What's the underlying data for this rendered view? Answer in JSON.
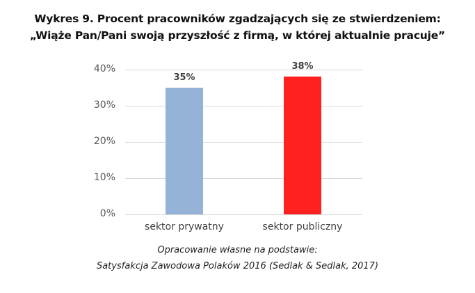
{
  "title_line1": "Wykres 9. Procent pracowników zgadzających się ze stwierdzeniem:",
  "title_line2": "„Wiąże Pan/Pani swoją przyszłość z firmą, w której aktualnie pracuje”",
  "yticks": [
    "0%",
    "10%",
    "20%",
    "30%",
    "40%"
  ],
  "bars": [
    {
      "category": "sektor prywatny",
      "value": 35,
      "label": "35%",
      "color": "#95b3d7"
    },
    {
      "category": "sektor publiczny",
      "value": 38,
      "label": "38%",
      "color": "#ff2020"
    }
  ],
  "source_line1": "Opracowanie własne na podstawie:",
  "source_line2": "Satysfakcja Zawodowa Polaków 2016 (Sedlak & Sedlak, 2017)",
  "chart_data": {
    "type": "bar",
    "title": "Wykres 9. Procent pracowników zgadzających się ze stwierdzeniem: „Wiąże Pan/Pani swoją przyszłość z firmą, w której aktualnie pracuje”",
    "categories": [
      "sektor prywatny",
      "sektor publiczny"
    ],
    "values": [
      35,
      38
    ],
    "data_labels": [
      "35%",
      "38%"
    ],
    "colors": [
      "#95b3d7",
      "#ff2020"
    ],
    "xlabel": "",
    "ylabel": "",
    "ylim": [
      0,
      40
    ],
    "yticks": [
      "0%",
      "10%",
      "20%",
      "30%",
      "40%"
    ],
    "grid": true,
    "legend": "none",
    "caption": "Opracowanie własne na podstawie: Satysfakcja Zawodowa Polaków 2016 (Sedlak & Sedlak, 2017)"
  }
}
